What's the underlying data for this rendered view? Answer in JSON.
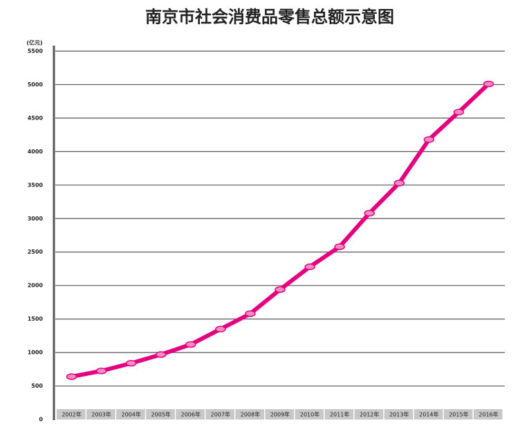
{
  "chart_data": {
    "type": "line",
    "title": "南京市社会消费品零售总额示意图",
    "y_label": "(亿元)",
    "categories": [
      "2002年",
      "2003年",
      "2004年",
      "2005年",
      "2006年",
      "2007年",
      "2008年",
      "2009年",
      "2010年",
      "2011年",
      "2012年",
      "2013年",
      "2014年",
      "2015年",
      "2016年"
    ],
    "values": [
      640,
      725,
      840,
      970,
      1120,
      1350,
      1580,
      1940,
      2280,
      2580,
      3080,
      3530,
      4180,
      4590,
      5010
    ],
    "color": "#e4007f",
    "ylim": [
      0,
      5500
    ],
    "yticks": [
      0,
      500,
      1000,
      1500,
      2000,
      2500,
      3000,
      3500,
      4000,
      4500,
      5000,
      5500
    ],
    "grid": true
  }
}
